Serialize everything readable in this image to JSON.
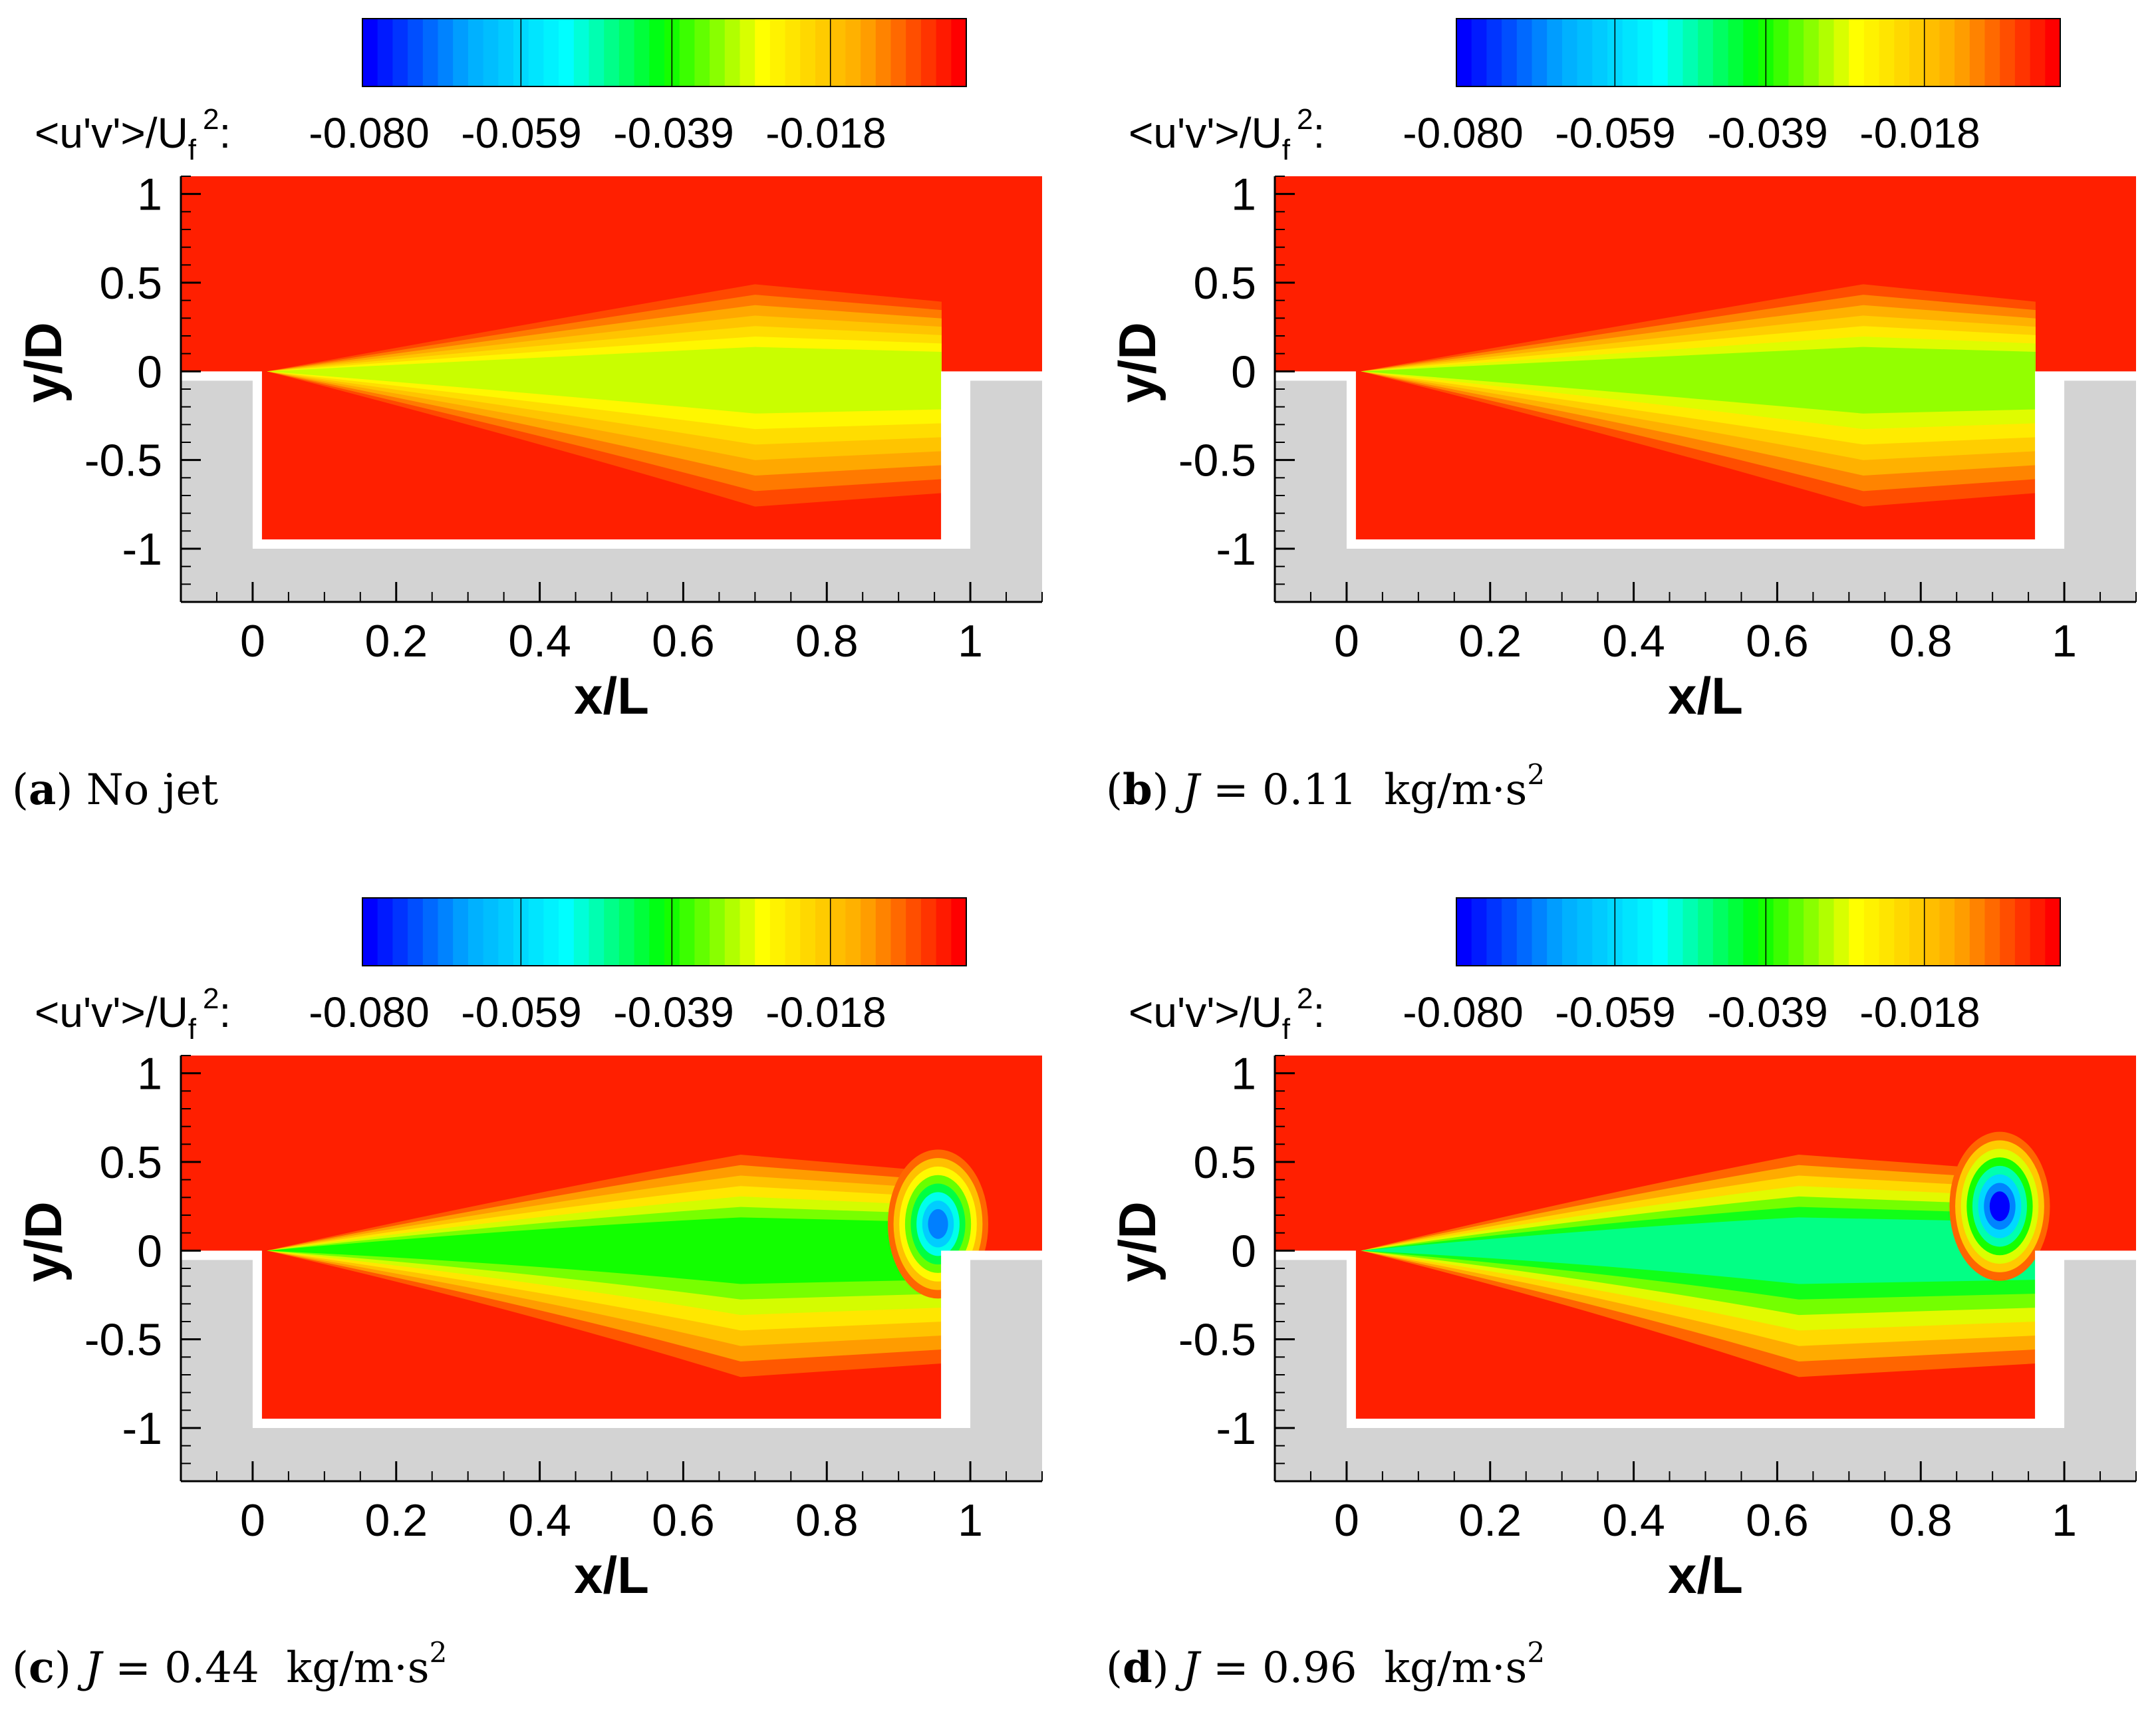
{
  "colors": {
    "colormap": [
      "#0000ff",
      "#00aaff",
      "#00ffff",
      "#00ff00",
      "#ffff00",
      "#ffaa00",
      "#ff0000"
    ],
    "wall": "#d3d3d3"
  },
  "colorbar": {
    "label_main": "<u'v'>/U",
    "label_sub": "f",
    "label_sup": "2",
    "label_colon": ":",
    "ticks": [
      "-0.080",
      "-0.059",
      "-0.039",
      "-0.018"
    ]
  },
  "chart_data": [
    {
      "type": "heatmap",
      "panel": "a",
      "caption_letter": "a",
      "caption_text": "No jet",
      "xlabel": "x/L",
      "ylabel": "y/D",
      "xlim": [
        -0.1,
        1.1
      ],
      "ylim": [
        -1.3,
        1.1
      ],
      "xticks": [
        "0",
        "0.2",
        "0.4",
        "0.6",
        "0.8",
        "1"
      ],
      "yticks": [
        "1",
        "0.5",
        "0",
        "-0.5",
        "-1"
      ],
      "cavity": {
        "x": [
          0,
          1
        ],
        "depth": -1
      },
      "field_range": [
        -0.08,
        0.0
      ],
      "features": [
        {
          "kind": "shear_layer",
          "x": 0.7,
          "y": 0.0,
          "value": -0.03
        }
      ]
    },
    {
      "type": "heatmap",
      "panel": "b",
      "caption_letter": "b",
      "caption_var": "J",
      "caption_eq": " = 0.11",
      "caption_unit": "kg/m·s",
      "caption_sup": "2",
      "xlabel": "x/L",
      "ylabel": "y/D",
      "xlim": [
        -0.1,
        1.1
      ],
      "ylim": [
        -1.3,
        1.1
      ],
      "xticks": [
        "0",
        "0.2",
        "0.4",
        "0.6",
        "0.8",
        "1"
      ],
      "yticks": [
        "1",
        "0.5",
        "0",
        "-0.5",
        "-1"
      ],
      "cavity": {
        "x": [
          0,
          1
        ],
        "depth": -1
      },
      "field_range": [
        -0.08,
        0.0
      ],
      "features": [
        {
          "kind": "shear_layer",
          "x": 0.72,
          "y": 0.0,
          "value": -0.033
        }
      ]
    },
    {
      "type": "heatmap",
      "panel": "c",
      "caption_letter": "c",
      "caption_var": "J",
      "caption_eq": " = 0.44",
      "caption_unit": "kg/m·s",
      "caption_sup": "2",
      "xlabel": "x/L",
      "ylabel": "y/D",
      "xlim": [
        -0.1,
        1.1
      ],
      "ylim": [
        -1.3,
        1.1
      ],
      "xticks": [
        "0",
        "0.2",
        "0.4",
        "0.6",
        "0.8",
        "1"
      ],
      "yticks": [
        "1",
        "0.5",
        "0",
        "-0.5",
        "-1"
      ],
      "cavity": {
        "x": [
          0,
          1
        ],
        "depth": -1
      },
      "field_range": [
        -0.08,
        0.0
      ],
      "features": [
        {
          "kind": "shear_layer",
          "x": 0.68,
          "y": 0.05,
          "value": -0.04
        },
        {
          "kind": "jet_core",
          "x": 0.955,
          "y": 0.15,
          "value": -0.07
        }
      ]
    },
    {
      "type": "heatmap",
      "panel": "d",
      "caption_letter": "d",
      "caption_var": "J",
      "caption_eq": " = 0.96",
      "caption_unit": "kg/m·s",
      "caption_sup": "2",
      "xlabel": "x/L",
      "ylabel": "y/D",
      "xlim": [
        -0.1,
        1.1
      ],
      "ylim": [
        -1.3,
        1.1
      ],
      "xticks": [
        "0",
        "0.2",
        "0.4",
        "0.6",
        "0.8",
        "1"
      ],
      "yticks": [
        "1",
        "0.5",
        "0",
        "-0.5",
        "-1"
      ],
      "cavity": {
        "x": [
          0,
          1
        ],
        "depth": -1
      },
      "field_range": [
        -0.08,
        0.0
      ],
      "features": [
        {
          "kind": "shear_layer",
          "x": 0.63,
          "y": 0.05,
          "value": -0.048
        },
        {
          "kind": "jet_core",
          "x": 0.91,
          "y": 0.25,
          "value": -0.08
        }
      ]
    }
  ]
}
